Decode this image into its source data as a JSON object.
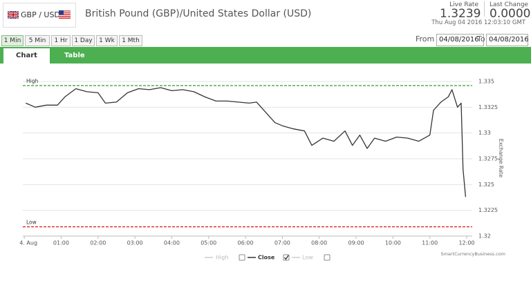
{
  "header": {
    "pair": "GBP / USD",
    "title": "British Pound (GBP)/United States Dollar (USD)",
    "live_rate_label": "Live Rate",
    "live_rate": "1.3239",
    "last_change_label": "Last Change",
    "last_change": "0.0000",
    "timestamp": "Thu Aug 04 2016 12:03:10 GMT"
  },
  "toolbar": {
    "ranges": [
      "1 Min",
      "5 Min",
      "1 Hr",
      "1 Day",
      "1 Wk",
      "1 Mth"
    ],
    "from_label": "From",
    "from": "04/08/2016",
    "to_label": "To",
    "to": "04/08/2016"
  },
  "tabs": [
    "Chart",
    "Table"
  ],
  "chart_data": {
    "type": "line",
    "y_label": "Exchange Rate",
    "credit": "SmartCurrencyBusiness.com",
    "x": [
      0.04,
      0.3,
      0.6,
      0.9,
      1.1,
      1.4,
      1.7,
      2.0,
      2.2,
      2.5,
      2.8,
      3.1,
      3.4,
      3.7,
      4.0,
      4.3,
      4.6,
      4.9,
      5.2,
      5.5,
      5.8,
      6.1,
      6.3,
      6.5,
      6.8,
      7.0,
      7.3,
      7.6,
      7.8,
      8.1,
      8.4,
      8.7,
      8.9,
      9.1,
      9.3,
      9.5,
      9.8,
      10.1,
      10.4,
      10.7,
      11.0,
      11.1,
      11.3,
      11.5,
      11.6,
      11.75,
      11.85,
      11.9,
      11.97
    ],
    "series": [
      {
        "name": "Close",
        "color": "#333333",
        "values": [
          1.3329,
          1.3325,
          1.3327,
          1.3327,
          1.3335,
          1.3343,
          1.334,
          1.3339,
          1.3329,
          1.333,
          1.3339,
          1.3343,
          1.3342,
          1.3344,
          1.3341,
          1.3342,
          1.334,
          1.3335,
          1.3331,
          1.3331,
          1.333,
          1.3329,
          1.333,
          1.3322,
          1.331,
          1.3307,
          1.3304,
          1.3302,
          1.3288,
          1.3295,
          1.3292,
          1.3302,
          1.3288,
          1.3298,
          1.3285,
          1.3295,
          1.3292,
          1.3296,
          1.3295,
          1.3292,
          1.3298,
          1.3322,
          1.333,
          1.3335,
          1.3342,
          1.3325,
          1.3329,
          1.3265,
          1.3238
        ]
      }
    ],
    "high": {
      "name": "High",
      "value": 1.3346,
      "color": "#2e9e2e"
    },
    "low": {
      "name": "Low",
      "value": 1.3209,
      "color": "#dd2222"
    },
    "xlim": [
      -0.04,
      12.15
    ],
    "xticks": [
      {
        "value": 0,
        "label": "4. Aug"
      },
      {
        "value": 1,
        "label": "01:00"
      },
      {
        "value": 2,
        "label": "02:00"
      },
      {
        "value": 3,
        "label": "03:00"
      },
      {
        "value": 4,
        "label": "04:00"
      },
      {
        "value": 5,
        "label": "05:00"
      },
      {
        "value": 6,
        "label": "06:00"
      },
      {
        "value": 7,
        "label": "07:00"
      },
      {
        "value": 8,
        "label": "08:00"
      },
      {
        "value": 9,
        "label": "09:00"
      },
      {
        "value": 10,
        "label": "10:00"
      },
      {
        "value": 11,
        "label": "11:00"
      },
      {
        "value": 12,
        "label": "12:00"
      }
    ],
    "ylim": [
      1.32,
      1.335
    ],
    "yticks": [
      1.32,
      1.3225,
      1.325,
      1.3275,
      1.33,
      1.3325,
      1.335
    ],
    "grid": true
  }
}
